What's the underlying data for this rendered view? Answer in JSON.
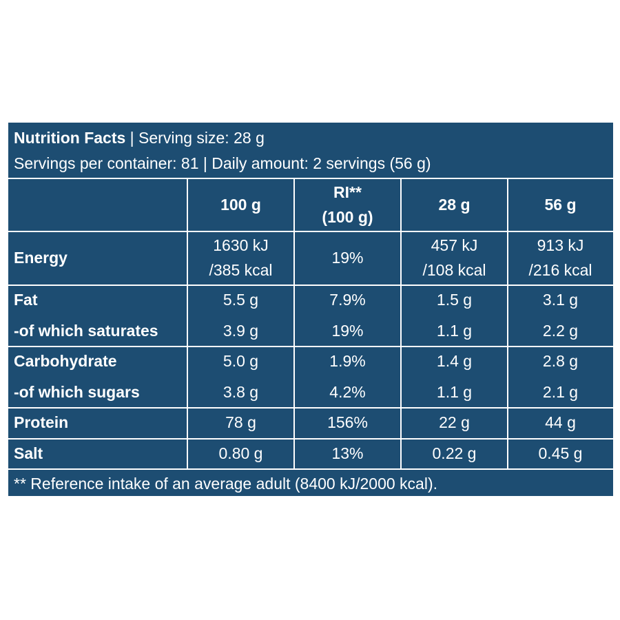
{
  "header": {
    "title": "Nutrition Facts",
    "serving": " | Serving size: 28 g",
    "line2": "Servings per container: 81 | Daily amount: 2 servings (56 g)"
  },
  "table": {
    "columns": [
      [
        "100 g"
      ],
      [
        "RI**",
        "(100 g)"
      ],
      [
        "28 g"
      ],
      [
        "56 g"
      ]
    ],
    "groups": [
      [
        {
          "label": "Energy",
          "values": [
            [
              "1630 kJ",
              "/385 kcal"
            ],
            [
              "19%"
            ],
            [
              "457 kJ",
              "/108 kcal"
            ],
            [
              "913 kJ",
              "/216 kcal"
            ]
          ]
        }
      ],
      [
        {
          "label": "Fat",
          "values": [
            [
              "5.5 g"
            ],
            [
              "7.9%"
            ],
            [
              "1.5 g"
            ],
            [
              "3.1 g"
            ]
          ]
        },
        {
          "label": "-of which saturates",
          "values": [
            [
              "3.9 g"
            ],
            [
              "19%"
            ],
            [
              "1.1 g"
            ],
            [
              "2.2 g"
            ]
          ]
        }
      ],
      [
        {
          "label": "Carbohydrate",
          "values": [
            [
              "5.0 g"
            ],
            [
              "1.9%"
            ],
            [
              "1.4 g"
            ],
            [
              "2.8 g"
            ]
          ]
        },
        {
          "label": "-of which sugars",
          "values": [
            [
              "3.8 g"
            ],
            [
              "4.2%"
            ],
            [
              "1.1 g"
            ],
            [
              "2.1 g"
            ]
          ]
        }
      ],
      [
        {
          "label": "Protein",
          "values": [
            [
              "78 g"
            ],
            [
              "156%"
            ],
            [
              "22 g"
            ],
            [
              "44 g"
            ]
          ]
        }
      ],
      [
        {
          "label": "Salt",
          "values": [
            [
              "0.80 g"
            ],
            [
              "13%"
            ],
            [
              "0.22 g"
            ],
            [
              "0.45 g"
            ]
          ]
        }
      ]
    ]
  },
  "footer": "** Reference intake of an average adult (8400 kJ/2000 kcal)."
}
